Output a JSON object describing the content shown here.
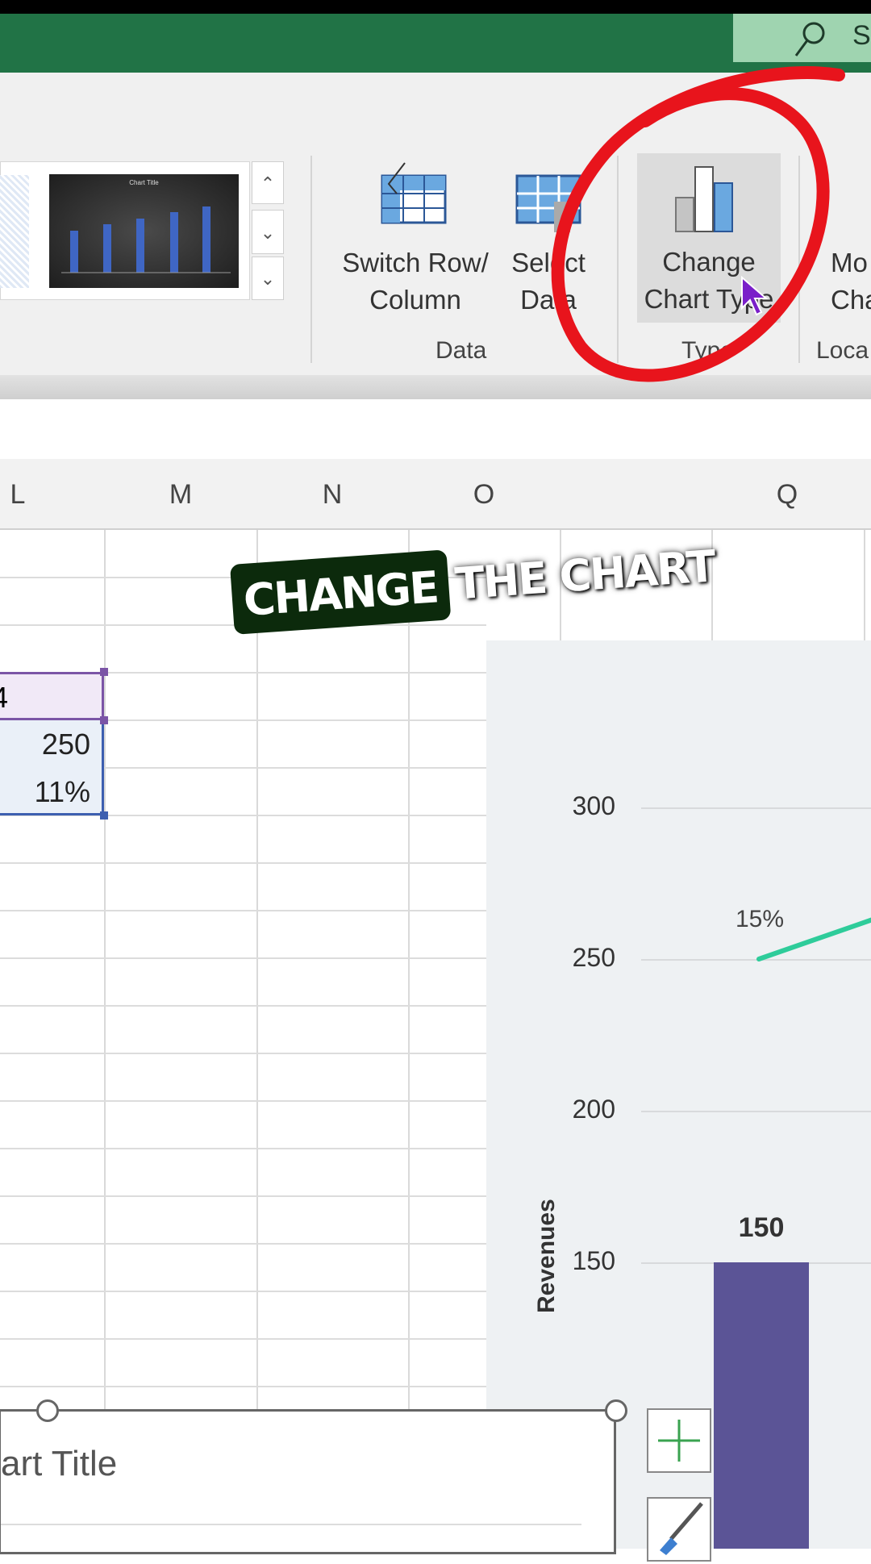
{
  "titlebar": {
    "search_label": "S",
    "search_icon": "search-icon",
    "color": "#217346"
  },
  "ribbon": {
    "switch_row_column": [
      "Switch Row/",
      "Column"
    ],
    "select_data": [
      "Select",
      "Data"
    ],
    "change_chart_type": [
      "Change",
      "Chart Type"
    ],
    "move_chart_partial": [
      "Mo",
      "Cha"
    ],
    "groups": {
      "data": "Data",
      "type": "Type",
      "location": "Loca"
    },
    "gallery_thumb_title": "Chart Title"
  },
  "sheet": {
    "columns": [
      "L",
      "M",
      "N",
      "O",
      "Q"
    ],
    "cells": {
      "header_partial": "4",
      "revenue": "250",
      "growth": "11%"
    }
  },
  "chart": {
    "type": "combo bar+line",
    "y_axis_label": "Revenues",
    "y_ticks": [
      150,
      200,
      250,
      300
    ],
    "bar": {
      "value": 150,
      "label": "150",
      "color": "#5b5496"
    },
    "line": {
      "start_value": 250,
      "label": "15%",
      "color": "#2ecc9a"
    }
  },
  "chart_object": {
    "title_partial": "art Title"
  },
  "caption": {
    "highlight": "CHANGE",
    "rest": "THE CHART"
  },
  "annotation_color": "#e8141c"
}
